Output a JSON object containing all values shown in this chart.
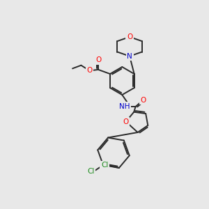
{
  "bg_color": "#e8e8e8",
  "bond_color": "#2a2a2a",
  "atom_colors": {
    "O": "#ff0000",
    "N": "#0000cc",
    "Cl": "#1a8a1a",
    "H": "#555555"
  },
  "figsize": [
    3.0,
    3.0
  ],
  "dpi": 100,
  "lw": 1.4,
  "fs": 7.5
}
